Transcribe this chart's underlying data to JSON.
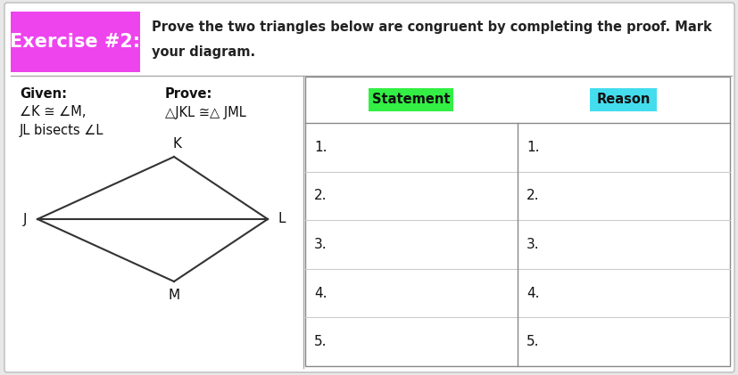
{
  "bg_color": "#e8e8e8",
  "card_bg": "#ffffff",
  "exercise_label_bg": "#ee44ee",
  "exercise_label_text": "Exercise #2:",
  "exercise_label_color": "#ffffff",
  "instruction_line1": "Prove the two triangles below are congruent by completing the proof. Mark",
  "instruction_line2": "your diagram.",
  "given_label": "Given:",
  "given_line1": "∠K ≅ ∠M,",
  "given_line2": "JL bisects ∠L",
  "prove_label": "Prove:",
  "prove_text": "△JKL ≅△ JML",
  "statement_label": "Statement",
  "statement_bg": "#33ee44",
  "reason_label": "Reason",
  "reason_bg": "#44ddee",
  "rows": [
    "1.",
    "2.",
    "3.",
    "4.",
    "5."
  ],
  "label_J": "J",
  "label_K": "K",
  "label_L": "L",
  "label_M": "M"
}
